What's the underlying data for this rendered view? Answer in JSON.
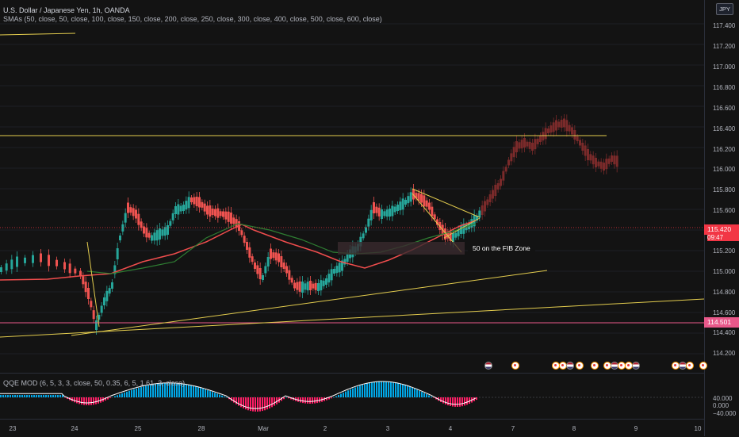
{
  "header": {
    "symbol_line": "U.S. Dollar / Japanese Yen, 1h, OANDA",
    "sma_line": "SMAs (50, close, 50, close, 100, close, 150, close, 200, close, 250, close, 300, close, 400, close, 500, close, 600, close)",
    "currency_button": "JPY"
  },
  "indicator": {
    "legend": "QQE MOD (6, 5, 3, 3, close, 50, 0.35, 6, 5, 1.61, 3, close)",
    "ticks": [
      "40.000",
      "0.000",
      "−40.000"
    ]
  },
  "price_axis": {
    "ticks": [
      "117.400",
      "117.200",
      "117.000",
      "116.800",
      "116.600",
      "116.400",
      "116.200",
      "116.000",
      "115.800",
      "115.600",
      "115.200",
      "115.000",
      "114.800",
      "114.600",
      "114.400",
      "114.200"
    ],
    "current_price": "115.420",
    "countdown": "09:47",
    "level_price": "114.501"
  },
  "time_axis": {
    "ticks": [
      "23",
      "24",
      "25",
      "28",
      "Mar",
      "2",
      "3",
      "4",
      "7",
      "8",
      "9",
      "10"
    ]
  },
  "annotation": {
    "text": "50 on the FIB Zone"
  },
  "colors": {
    "background": "#131313",
    "up_candle": "#26a69a",
    "down_candle": "#ef5350",
    "sma_red": "#ef4d4d",
    "sma_green": "#2e7d32",
    "trendline": "#e3cc4e",
    "level_line": "#e8588a",
    "qqe_up": "#00a8e8",
    "qqe_down": "#ff1e66"
  },
  "events": [
    {
      "type": "us-flag-icon"
    },
    {
      "type": "event-icon"
    },
    {
      "type": "event-icon"
    },
    {
      "type": "event-icon"
    },
    {
      "type": "us-flag-icon"
    },
    {
      "type": "event-icon"
    },
    {
      "type": "event-icon"
    },
    {
      "type": "event-icon"
    },
    {
      "type": "us-flag-icon"
    },
    {
      "type": "event-icon"
    },
    {
      "type": "event-icon"
    },
    {
      "type": "us-flag-icon"
    },
    {
      "type": "event-icon"
    },
    {
      "type": "us-flag-icon"
    },
    {
      "type": "event-icon"
    },
    {
      "type": "event-icon"
    }
  ]
}
